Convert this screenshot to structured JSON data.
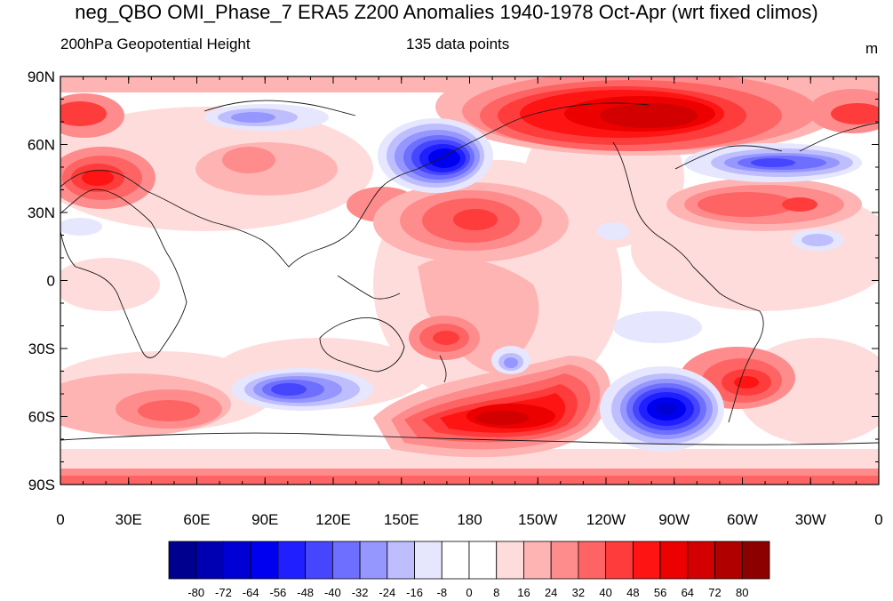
{
  "title": "neg_QBO OMI_Phase_7 ERA5 Z200 Anomalies 1940-1978 Oct-Apr (wrt fixed climos)",
  "left_label": "200hPa Geopotential Height",
  "center_label": "135 data points",
  "units": "m",
  "lat_labels": [
    "90N",
    "60N",
    "30N",
    "0",
    "30S",
    "60S",
    "90S"
  ],
  "lon_labels": [
    "0",
    "30E",
    "60E",
    "90E",
    "120E",
    "150E",
    "180",
    "150W",
    "120W",
    "90W",
    "60W",
    "30W",
    "0"
  ],
  "colorbar_labels": [
    "-80",
    "-72",
    "-64",
    "-56",
    "-48",
    "-40",
    "-32",
    "-24",
    "-16",
    "-8",
    "0",
    "8",
    "16",
    "24",
    "32",
    "40",
    "48",
    "56",
    "64",
    "72",
    "80"
  ],
  "colorbar_colors": [
    "#00008f",
    "#0000b2",
    "#0000d4",
    "#0000f0",
    "#1f1fff",
    "#4646ff",
    "#6e6eff",
    "#9696ff",
    "#bebeff",
    "#e6e6ff",
    "#ffffff",
    "#ffffff",
    "#ffdcdc",
    "#ffb4b4",
    "#ff8c8c",
    "#ff6464",
    "#ff3c3c",
    "#ff1414",
    "#ec0000",
    "#d20000",
    "#b00000",
    "#8c0000"
  ]
}
